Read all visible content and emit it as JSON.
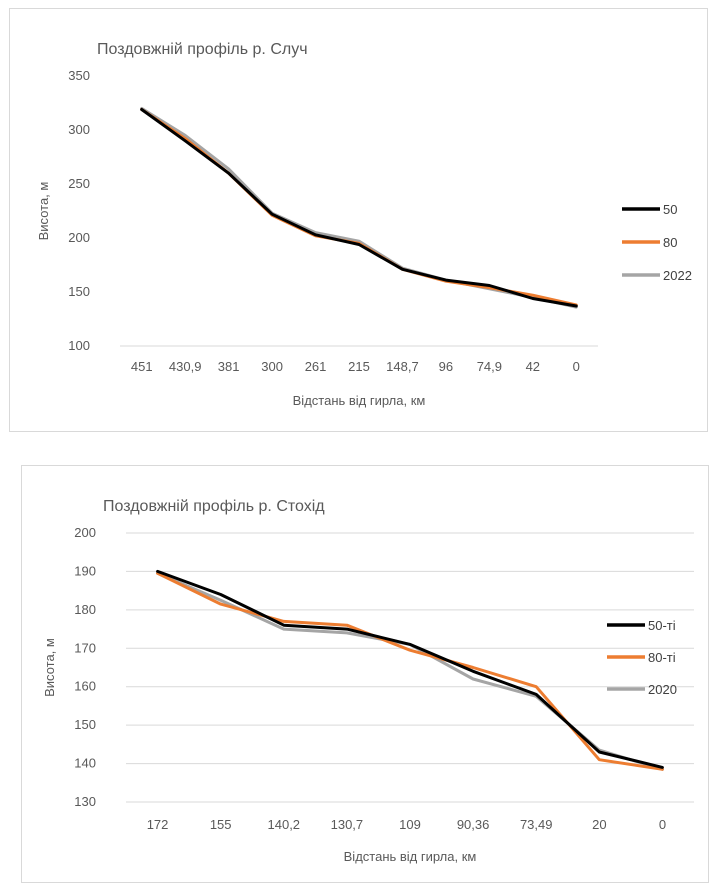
{
  "chart_data": [
    {
      "type": "line",
      "title": "Поздовжній профіль р. Случ",
      "xlabel": "Відстань від гирла, км",
      "ylabel": "Висота, м",
      "categories": [
        "451",
        "430,9",
        "381",
        "300",
        "261",
        "215",
        "148,7",
        "96",
        "74,9",
        "42",
        "0"
      ],
      "ylim": [
        100,
        350
      ],
      "yticks": [
        "100",
        "150",
        "200",
        "250",
        "300",
        "350"
      ],
      "grid": false,
      "legend_position": "right",
      "series": [
        {
          "name": "50",
          "color": "#000000",
          "values": [
            319,
            290,
            260,
            222,
            203,
            194,
            171,
            161,
            156,
            144,
            137
          ]
        },
        {
          "name": "80",
          "color": "#ed7d31",
          "values": [
            319,
            292,
            260,
            221,
            202,
            195,
            171,
            160,
            154,
            147,
            138
          ]
        },
        {
          "name": "2022",
          "color": "#a5a5a5",
          "values": [
            320,
            295,
            264,
            223,
            205,
            197,
            172,
            161,
            153,
            145,
            136
          ]
        }
      ]
    },
    {
      "type": "line",
      "title": "Поздовжній профіль р. Стохід",
      "xlabel": "Відстань від гирла, км",
      "ylabel": "Висота, м",
      "categories": [
        "172",
        "155",
        "140,2",
        "130,7",
        "109",
        "90,36",
        "73,49",
        "20",
        "0"
      ],
      "ylim": [
        130,
        200
      ],
      "yticks": [
        "130",
        "140",
        "150",
        "160",
        "170",
        "180",
        "190",
        "200"
      ],
      "grid": true,
      "legend_position": "right",
      "series": [
        {
          "name": "50-ті",
          "color": "#000000",
          "values": [
            190,
            184,
            176,
            175,
            171,
            164,
            158,
            143,
            139
          ]
        },
        {
          "name": "80-ті",
          "color": "#ed7d31",
          "values": [
            189.5,
            181.5,
            177,
            176,
            169.5,
            165,
            160,
            141,
            138.5
          ]
        },
        {
          "name": "2020",
          "color": "#a5a5a5",
          "values": [
            189.5,
            182.5,
            175,
            174,
            171,
            162,
            157.5,
            143.5,
            138.5
          ]
        }
      ]
    }
  ]
}
